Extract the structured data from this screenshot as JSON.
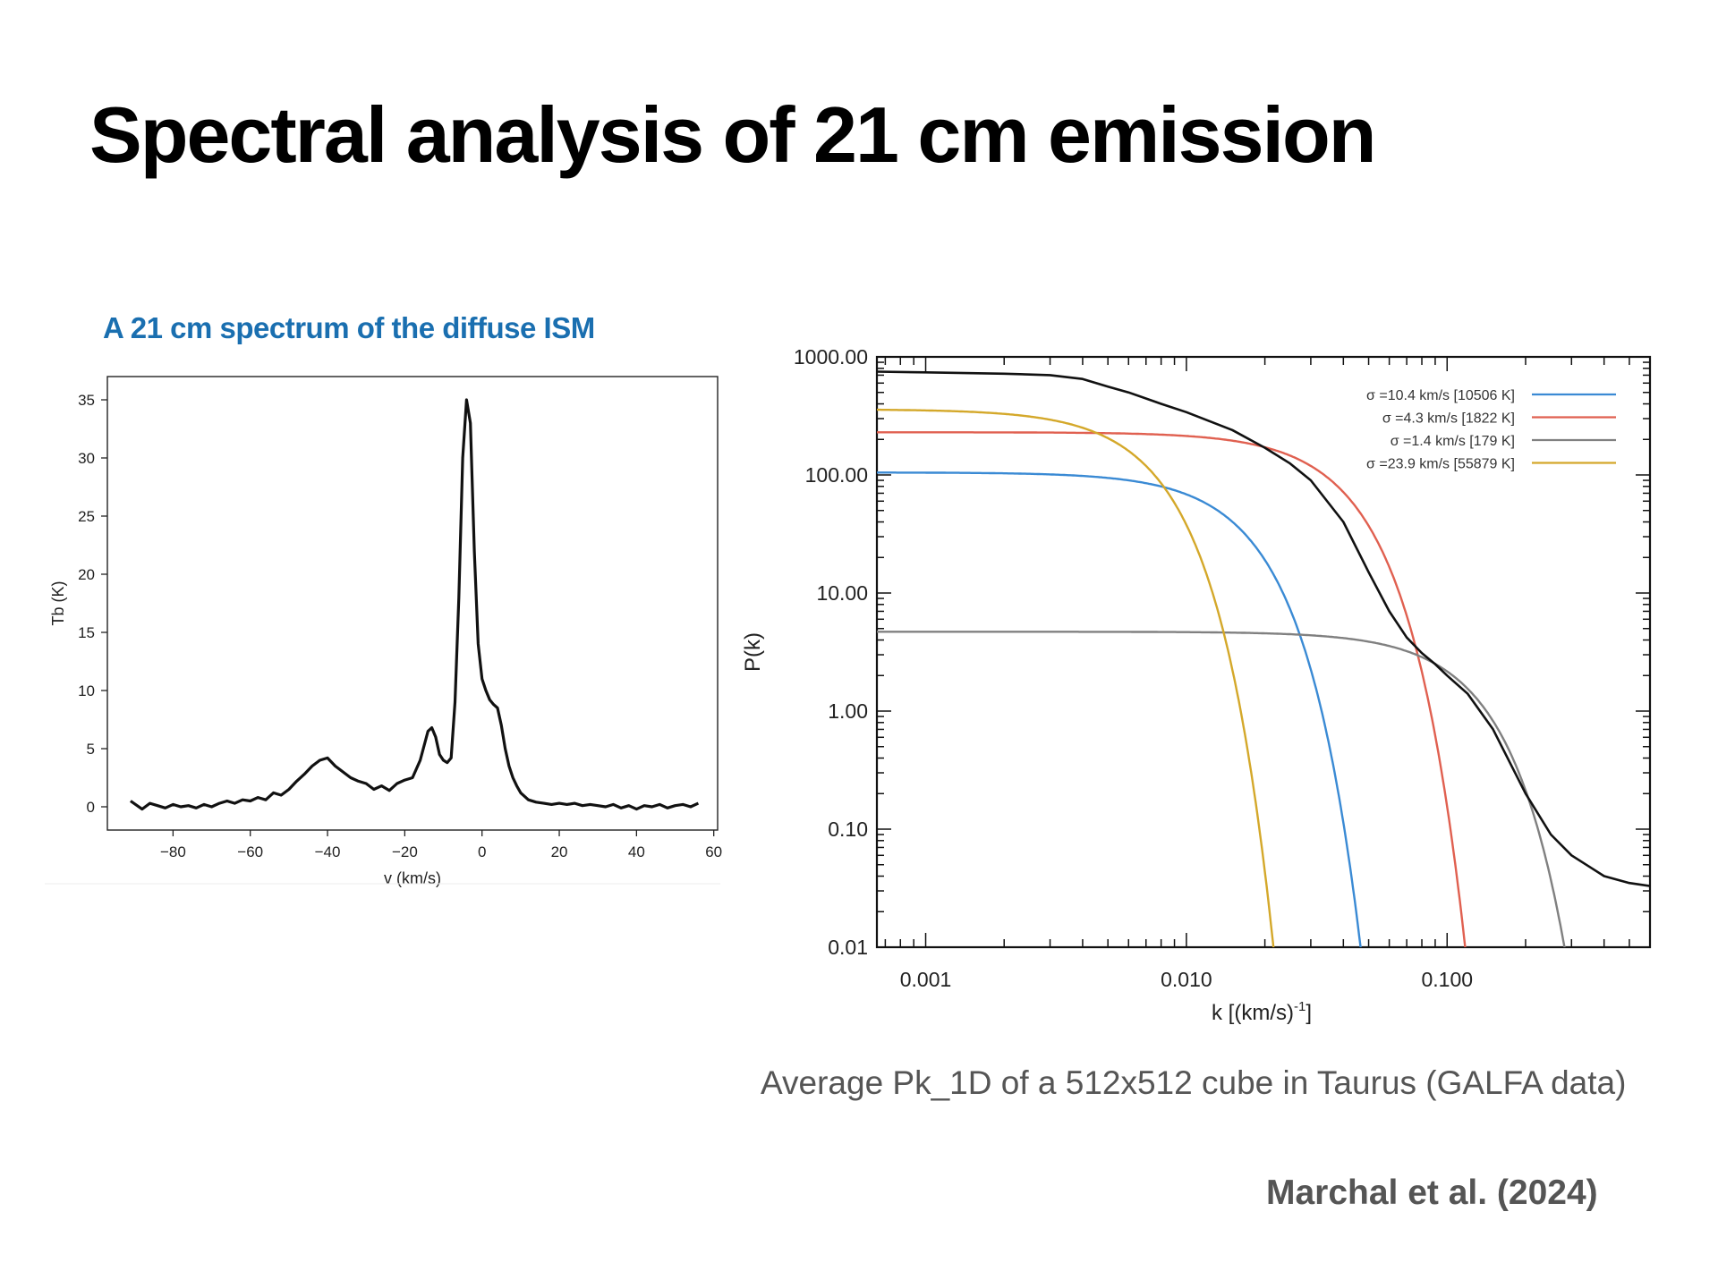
{
  "slide": {
    "title": "Spectral analysis of 21 cm emission",
    "left_caption": "A 21 cm spectrum of the diffuse ISM",
    "right_caption": "Average Pk_1D of a 512x512 cube in Taurus (GALFA data)",
    "citation": "Marchal et al. (2024)"
  },
  "chart_data": [
    {
      "type": "line",
      "xlabel": "v (km/s)",
      "ylabel": "Tb (K)",
      "xlim": [
        -97,
        61
      ],
      "ylim": [
        -2,
        37
      ],
      "x_ticks": [
        -80,
        -60,
        -40,
        -20,
        0,
        20,
        40,
        60
      ],
      "x_tick_labels": [
        "−80",
        "−60",
        "−40",
        "−20",
        "0",
        "20",
        "40",
        "60"
      ],
      "y_ticks": [
        0,
        5,
        10,
        15,
        20,
        25,
        30,
        35
      ],
      "y_tick_labels": [
        "0",
        "5",
        "10",
        "15",
        "20",
        "25",
        "30",
        "35"
      ],
      "grid": false,
      "line_color": "#111111",
      "series": [
        {
          "x": [
            -91,
            -88,
            -86,
            -84,
            -82,
            -80,
            -78,
            -76,
            -74,
            -72,
            -70,
            -68,
            -66,
            -64,
            -62,
            -60,
            -58,
            -56,
            -54,
            -52,
            -50,
            -48,
            -46,
            -44,
            -42,
            -40,
            -38,
            -36,
            -34,
            -32,
            -30,
            -28,
            -26,
            -24,
            -22,
            -20,
            -18,
            -16,
            -14,
            -13,
            -12,
            -11,
            -10,
            -9,
            -8,
            -7,
            -6,
            -5,
            -4,
            -3,
            -2,
            -1,
            0,
            1,
            2,
            3,
            4,
            5,
            6,
            7,
            8,
            9,
            10,
            12,
            14,
            16,
            18,
            20,
            22,
            24,
            26,
            28,
            30,
            32,
            34,
            36,
            38,
            40,
            42,
            44,
            46,
            48,
            50,
            52,
            54,
            56
          ],
          "y": [
            0.5,
            -0.2,
            0.3,
            0.1,
            -0.1,
            0.2,
            0.0,
            0.1,
            -0.1,
            0.2,
            0.0,
            0.3,
            0.5,
            0.3,
            0.6,
            0.5,
            0.8,
            0.6,
            1.2,
            1.0,
            1.5,
            2.2,
            2.8,
            3.5,
            4.0,
            4.2,
            3.5,
            3.0,
            2.5,
            2.2,
            2.0,
            1.5,
            1.8,
            1.4,
            2.0,
            2.3,
            2.5,
            4.0,
            6.5,
            6.8,
            6.0,
            4.5,
            4.0,
            3.8,
            4.2,
            9.0,
            18.0,
            30.0,
            35.0,
            33.0,
            22.0,
            14.0,
            11.0,
            10.0,
            9.2,
            8.8,
            8.5,
            7.0,
            5.0,
            3.5,
            2.5,
            1.8,
            1.2,
            0.6,
            0.4,
            0.3,
            0.2,
            0.3,
            0.2,
            0.3,
            0.1,
            0.2,
            0.1,
            0.0,
            0.2,
            -0.1,
            0.1,
            -0.2,
            0.1,
            0.0,
            0.2,
            -0.1,
            0.1,
            0.2,
            0.0,
            0.3
          ]
        }
      ]
    },
    {
      "type": "line",
      "xlabel": "k [(km/s)",
      "xlabel_sup": "-1",
      "xlabel_end": "]",
      "ylabel": "P(k)",
      "x_scale": "log",
      "y_scale": "log",
      "xlim": [
        0.00065,
        0.6
      ],
      "ylim": [
        0.01,
        1000
      ],
      "x_ticks": [
        0.001,
        0.01,
        0.1
      ],
      "x_tick_labels": [
        "0.001",
        "0.010",
        "0.100"
      ],
      "y_ticks": [
        1000,
        100,
        10,
        1,
        0.1,
        0.01
      ],
      "y_tick_labels": [
        "1000.00",
        "100.00",
        "10.00",
        "1.00",
        "0.10",
        "0.01"
      ],
      "grid": false,
      "legend_position": "top-right",
      "series": [
        {
          "name": "σ =10.4 km/s [10506 K]",
          "color": "#3a8ad4",
          "amplitude": 105,
          "sigma": 10.4
        },
        {
          "name": "σ =4.3 km/s [1822 K]",
          "color": "#e06050",
          "amplitude": 230,
          "sigma": 4.3
        },
        {
          "name": "σ =1.4 km/s [179 K]",
          "color": "#808080",
          "amplitude": 4.7,
          "sigma": 1.4
        },
        {
          "name": "σ =23.9 km/s [55879 K]",
          "color": "#d4a82a",
          "amplitude": 360,
          "sigma": 23.9
        }
      ],
      "total": {
        "color": "#111111",
        "k": [
          0.00065,
          0.001,
          0.002,
          0.003,
          0.004,
          0.005,
          0.006,
          0.008,
          0.01,
          0.015,
          0.02,
          0.025,
          0.03,
          0.04,
          0.05,
          0.06,
          0.07,
          0.08,
          0.09,
          0.1,
          0.12,
          0.15,
          0.2,
          0.25,
          0.3,
          0.4,
          0.5,
          0.6
        ],
        "p": [
          750,
          740,
          720,
          700,
          650,
          560,
          500,
          400,
          340,
          240,
          170,
          125,
          90,
          40,
          15,
          7.0,
          4.2,
          3.1,
          2.5,
          2.0,
          1.4,
          0.7,
          0.2,
          0.09,
          0.06,
          0.04,
          0.035,
          0.033
        ]
      }
    }
  ]
}
